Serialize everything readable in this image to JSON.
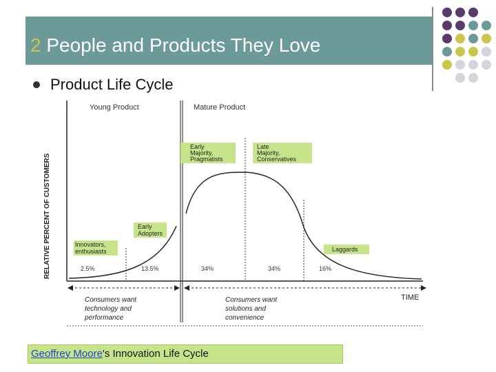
{
  "title": {
    "number": "2",
    "text": "People and Products They Love"
  },
  "subtitle": "Product Life Cycle",
  "colors": {
    "title_bar": "#6b9a98",
    "title_number": "#c9c64a",
    "dot_purple": "#5a3a6a",
    "dot_teal": "#6b9a98",
    "dot_olive": "#c9c64a",
    "dot_gray": "#d4d4dc",
    "label_box": "#c6e48a"
  },
  "diagram": {
    "y_axis_label": "RELATIVE PERCENT OF CUSTOMERS",
    "x_axis_label": "TIME",
    "phase_left": "Young Product",
    "phase_right": "Mature Product",
    "groups": [
      {
        "label_line1": "Innovators,",
        "label_line2": "enthusiasts",
        "percent": "2.5%"
      },
      {
        "label_line1": "Early",
        "label_line2": "Adopters",
        "percent": "13.5%"
      },
      {
        "label_line1": "Early",
        "label_line2": "Majority,",
        "label_line3": "Pragmatists",
        "percent": "34%"
      },
      {
        "label_line1": "Late",
        "label_line2": "Majority,",
        "label_line3": "Conservatives",
        "percent": "34%"
      },
      {
        "label_line1": "Laggards",
        "percent": "16%"
      }
    ],
    "note_left": [
      "Consumers want",
      "technology and",
      "performance"
    ],
    "note_right": [
      "Consumers want",
      "solutions and",
      "convenience"
    ]
  },
  "caption": {
    "link_text": "Geoffrey Moore",
    "rest": "'s Innovation Life Cycle"
  }
}
